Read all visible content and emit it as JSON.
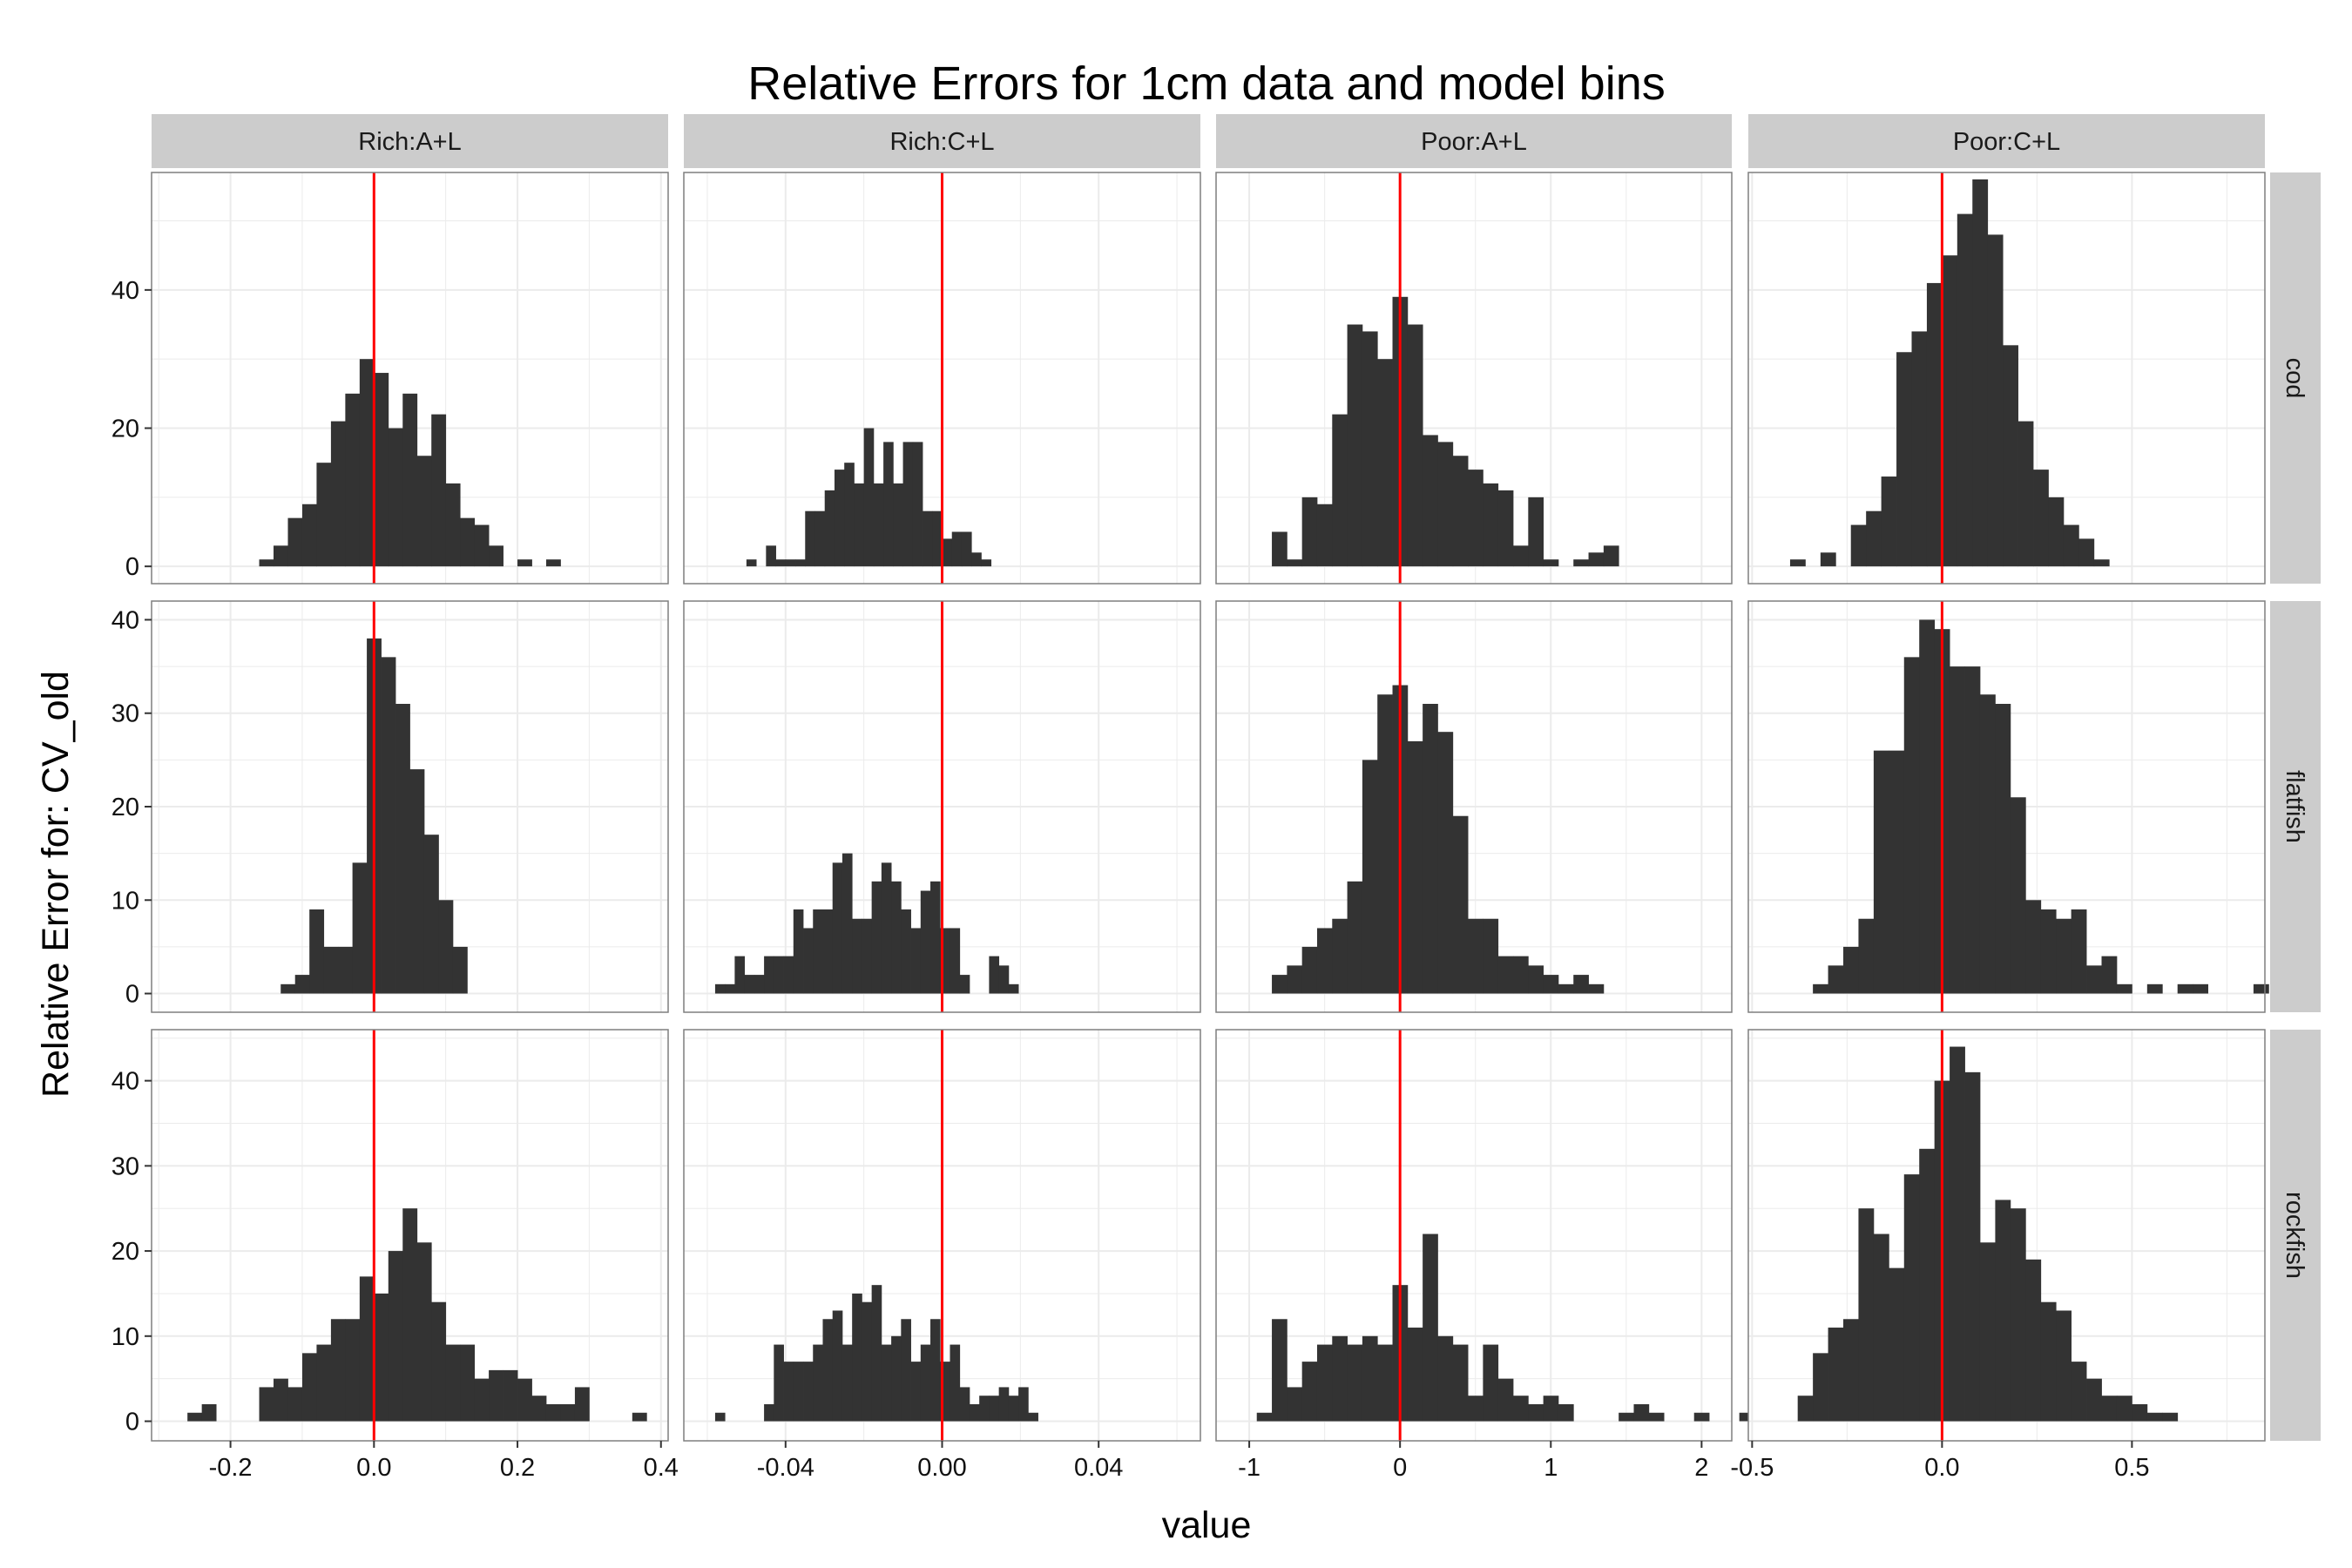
{
  "chart_data": {
    "type": "bar",
    "title": "Relative Errors for 1cm data and model bins",
    "xlabel": "value",
    "ylabel": "Relative Error for: CV_old",
    "columns": [
      "Rich:A+L",
      "Rich:C+L",
      "Poor:A+L",
      "Poor:C+L"
    ],
    "rows": [
      "cod",
      "flatfish",
      "rockfish"
    ],
    "reference_line": {
      "value": 0,
      "color": "#e41a1c"
    },
    "colors": {
      "bar": "#333333",
      "panel_bg": "#ffffff",
      "grid": "#ebebeb",
      "strip": "#cccccc",
      "ref": "#ff0000"
    },
    "x_axes": [
      {
        "xlim": [
          -0.31,
          0.41
        ],
        "ticks": [
          -0.2,
          0.0,
          0.2,
          0.4
        ],
        "tick_labels": [
          "-0.2",
          "0.0",
          "0.2",
          "0.4"
        ]
      },
      {
        "xlim": [
          -0.066,
          0.066
        ],
        "ticks": [
          -0.04,
          0.0,
          0.04
        ],
        "tick_labels": [
          "-0.04",
          "0.00",
          "0.04"
        ]
      },
      {
        "xlim": [
          -1.22,
          2.2
        ],
        "ticks": [
          -1,
          0,
          1,
          2
        ],
        "tick_labels": [
          "-1",
          "0",
          "1",
          "2"
        ]
      },
      {
        "xlim": [
          -0.51,
          0.85
        ],
        "ticks": [
          -0.5,
          0.0,
          0.5
        ],
        "tick_labels": [
          "-0.5",
          "0.0",
          "0.5"
        ]
      }
    ],
    "y_axes": [
      {
        "row": "cod",
        "ylim": [
          -2.5,
          57
        ],
        "ticks": [
          0,
          20,
          40
        ],
        "tick_labels": [
          "0",
          "20",
          "40"
        ]
      },
      {
        "row": "flatfish",
        "ylim": [
          -2,
          42
        ],
        "ticks": [
          0,
          10,
          20,
          30,
          40
        ],
        "tick_labels": [
          "0",
          "10",
          "20",
          "30",
          "40"
        ]
      },
      {
        "row": "rockfish",
        "ylim": [
          -2.3,
          46
        ],
        "ticks": [
          0,
          10,
          20,
          30,
          40
        ],
        "tick_labels": [
          "0",
          "10",
          "20",
          "30",
          "40"
        ]
      }
    ],
    "panels": [
      {
        "row": "cod",
        "column": "Rich:A+L",
        "bin_start": -0.16,
        "bin_width": 0.02,
        "counts": [
          1,
          3,
          7,
          9,
          15,
          21,
          25,
          30,
          28,
          20,
          25,
          16,
          22,
          12,
          7,
          6,
          3,
          0,
          1,
          0,
          1
        ]
      },
      {
        "row": "cod",
        "column": "Rich:C+L",
        "bin_start": -0.05,
        "bin_width": 0.0025,
        "counts": [
          1,
          0,
          3,
          1,
          1,
          1,
          8,
          8,
          11,
          14,
          15,
          12,
          20,
          12,
          18,
          12,
          18,
          18,
          8,
          8,
          4,
          5,
          5,
          2,
          1
        ]
      },
      {
        "row": "cod",
        "column": "Poor:A+L",
        "bin_start": -0.85,
        "bin_width": 0.1,
        "counts": [
          5,
          1,
          10,
          9,
          22,
          35,
          34,
          30,
          39,
          35,
          19,
          18,
          16,
          14,
          12,
          11,
          3,
          10,
          1,
          0,
          1,
          2,
          3
        ]
      },
      {
        "row": "cod",
        "column": "Poor:C+L",
        "bin_start": -0.4,
        "bin_width": 0.04,
        "counts": [
          1,
          0,
          2,
          0,
          6,
          8,
          13,
          31,
          34,
          41,
          45,
          51,
          56,
          48,
          32,
          21,
          14,
          10,
          6,
          4,
          1
        ]
      },
      {
        "row": "flatfish",
        "column": "Rich:A+L",
        "bin_start": -0.13,
        "bin_width": 0.02,
        "counts": [
          1,
          2,
          9,
          5,
          5,
          14,
          38,
          36,
          31,
          24,
          17,
          10,
          5
        ]
      },
      {
        "row": "flatfish",
        "column": "Rich:C+L",
        "bin_start": -0.058,
        "bin_width": 0.0025,
        "counts": [
          1,
          1,
          4,
          2,
          2,
          4,
          4,
          4,
          9,
          7,
          9,
          9,
          14,
          15,
          8,
          8,
          12,
          14,
          12,
          9,
          7,
          11,
          12,
          7,
          7,
          2,
          0,
          0,
          4,
          3,
          1
        ]
      },
      {
        "row": "flatfish",
        "column": "Poor:A+L",
        "bin_start": -0.85,
        "bin_width": 0.1,
        "counts": [
          2,
          3,
          5,
          7,
          8,
          12,
          25,
          32,
          33,
          27,
          31,
          28,
          19,
          8,
          8,
          4,
          4,
          3,
          2,
          1,
          2,
          1
        ]
      },
      {
        "row": "flatfish",
        "column": "Poor:C+L",
        "bin_start": -0.34,
        "bin_width": 0.04,
        "counts": [
          1,
          3,
          5,
          8,
          26,
          26,
          36,
          40,
          39,
          35,
          35,
          32,
          31,
          21,
          10,
          9,
          8,
          9,
          3,
          4,
          1,
          0,
          1,
          0,
          1,
          1,
          0,
          0,
          0,
          1
        ]
      },
      {
        "row": "rockfish",
        "column": "Rich:A+L",
        "bin_start": -0.26,
        "bin_width": 0.02,
        "counts": [
          1,
          2,
          0,
          0,
          0,
          4,
          5,
          4,
          8,
          9,
          12,
          12,
          17,
          15,
          20,
          25,
          21,
          14,
          9,
          9,
          5,
          6,
          6,
          5,
          3,
          2,
          2,
          4,
          0,
          0,
          0,
          1,
          0,
          0,
          0,
          0,
          0,
          1
        ]
      },
      {
        "row": "rockfish",
        "column": "Rich:C+L",
        "bin_start": -0.058,
        "bin_width": 0.0025,
        "counts": [
          1,
          0,
          0,
          0,
          0,
          2,
          9,
          7,
          7,
          7,
          9,
          12,
          13,
          9,
          15,
          14,
          16,
          9,
          10,
          12,
          7,
          9,
          12,
          7,
          9,
          4,
          2,
          3,
          3,
          4,
          3,
          4,
          1
        ]
      },
      {
        "row": "rockfish",
        "column": "Poor:A+L",
        "bin_start": -0.95,
        "bin_width": 0.1,
        "counts": [
          1,
          12,
          4,
          7,
          9,
          10,
          9,
          10,
          9,
          16,
          11,
          22,
          10,
          9,
          3,
          9,
          5,
          3,
          2,
          3,
          2,
          0,
          0,
          0,
          1,
          2,
          1,
          0,
          0,
          1,
          0,
          0,
          1,
          0,
          0,
          1
        ]
      },
      {
        "row": "rockfish",
        "column": "Poor:C+L",
        "bin_start": -0.38,
        "bin_width": 0.04,
        "counts": [
          3,
          8,
          11,
          12,
          25,
          22,
          18,
          29,
          32,
          40,
          44,
          41,
          21,
          26,
          25,
          19,
          14,
          13,
          7,
          5,
          3,
          3,
          2,
          1,
          1
        ]
      }
    ]
  }
}
